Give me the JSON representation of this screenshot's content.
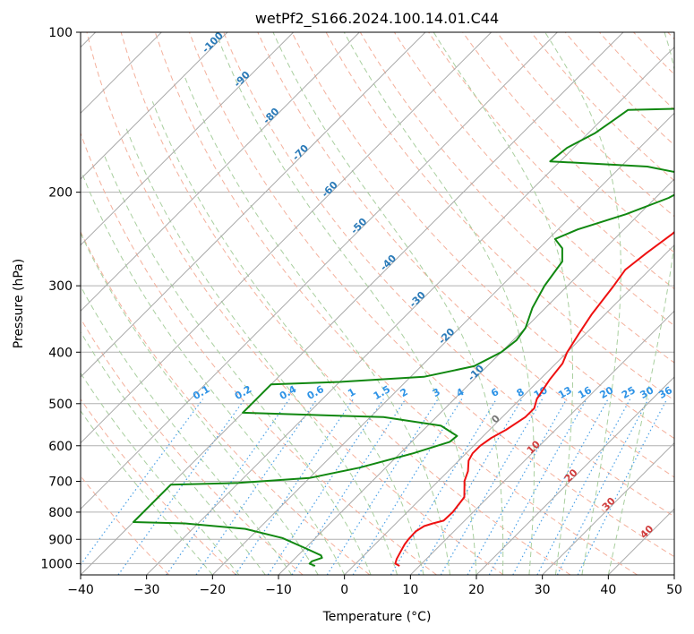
{
  "chart_data": {
    "type": "line",
    "title": "wetPf2_S166.2024.100.14.01.C44",
    "xlabel": "Temperature (°C)",
    "ylabel": "Pressure (hPa)",
    "xlim": [
      -40,
      50
    ],
    "ylim": [
      1050,
      100
    ],
    "y_scale": "log",
    "x_ticks": [
      -40,
      -30,
      -20,
      -10,
      0,
      10,
      20,
      30,
      40,
      50
    ],
    "y_ticks": [
      100,
      200,
      300,
      400,
      500,
      600,
      700,
      800,
      900,
      1000
    ],
    "grid": true,
    "series": [
      {
        "role": "temperature",
        "color": "#ee1111",
        "points": [
          [
            7.0,
            1010
          ],
          [
            6.0,
            1000
          ],
          [
            5.5,
            980
          ],
          [
            5.0,
            950
          ],
          [
            4.5,
            920
          ],
          [
            4.3,
            900
          ],
          [
            4.2,
            870
          ],
          [
            4.7,
            850
          ],
          [
            5.6,
            840
          ],
          [
            6.8,
            830
          ],
          [
            6.9,
            800
          ],
          [
            6.7,
            780
          ],
          [
            6.4,
            750
          ],
          [
            4.5,
            710
          ],
          [
            4.0,
            700
          ],
          [
            3.0,
            670
          ],
          [
            1.5,
            640
          ],
          [
            1.0,
            620
          ],
          [
            1.0,
            600
          ],
          [
            1.5,
            580
          ],
          [
            2.5,
            560
          ],
          [
            3.5,
            530
          ],
          [
            3.5,
            510
          ],
          [
            2.5,
            490
          ],
          [
            2.0,
            470
          ],
          [
            1.5,
            450
          ],
          [
            1.0,
            420
          ],
          [
            0.0,
            400
          ],
          [
            -1.0,
            370
          ],
          [
            -2.0,
            340
          ],
          [
            -3.0,
            300
          ],
          [
            -3.7,
            280
          ],
          [
            -3.0,
            260
          ],
          [
            -2.0,
            240
          ],
          [
            -1.6,
            220
          ],
          [
            -1.3,
            210
          ],
          [
            -0.3,
            200
          ],
          [
            2.0,
            190
          ],
          [
            6.0,
            180
          ],
          [
            9.5,
            170
          ],
          [
            12.5,
            160
          ],
          [
            14.5,
            150
          ],
          [
            16.0,
            140
          ],
          [
            16.5,
            130
          ],
          [
            18.0,
            120
          ],
          [
            20.0,
            110
          ],
          [
            22.0,
            105
          ],
          [
            28.5,
            100
          ]
        ]
      },
      {
        "role": "dewpoint",
        "color": "#118811",
        "points": [
          [
            -5.8,
            1010
          ],
          [
            -7.0,
            1000
          ],
          [
            -7.0,
            990
          ],
          [
            -6.0,
            975
          ],
          [
            -6.5,
            965
          ],
          [
            -10.0,
            935
          ],
          [
            -15.0,
            895
          ],
          [
            -22.0,
            860
          ],
          [
            -32.0,
            840
          ],
          [
            -40.0,
            835
          ],
          [
            -40.0,
            710
          ],
          [
            -30.0,
            705
          ],
          [
            -20.0,
            690
          ],
          [
            -14.0,
            660
          ],
          [
            -8.0,
            620
          ],
          [
            -4.2,
            590
          ],
          [
            -4.0,
            575
          ],
          [
            -8.0,
            550
          ],
          [
            -18.0,
            530
          ],
          [
            -40.0,
            520
          ],
          [
            -40.0,
            460
          ],
          [
            -30.0,
            455
          ],
          [
            -18.0,
            445
          ],
          [
            -12.0,
            425
          ],
          [
            -10.0,
            400
          ],
          [
            -9.5,
            380
          ],
          [
            -10.0,
            360
          ],
          [
            -12.0,
            330
          ],
          [
            -13.5,
            300
          ],
          [
            -14.5,
            270
          ],
          [
            -16.5,
            255
          ],
          [
            -19.0,
            245
          ],
          [
            -17.0,
            235
          ],
          [
            -12.0,
            220
          ],
          [
            -8.0,
            205
          ],
          [
            -6.5,
            195
          ],
          [
            -9.0,
            185
          ],
          [
            -16.0,
            179
          ],
          [
            -31.5,
            175
          ],
          [
            -31.0,
            165
          ],
          [
            -29.0,
            155
          ],
          [
            -28.0,
            145
          ],
          [
            -27.5,
            140
          ],
          [
            -17.0,
            139
          ],
          [
            -10.0,
            132
          ],
          [
            -6.5,
            125
          ],
          [
            -6.0,
            120
          ],
          [
            -5.5,
            115
          ],
          [
            -4.5,
            110
          ],
          [
            -3.5,
            105
          ],
          [
            -3.0,
            100
          ]
        ]
      }
    ],
    "reference_lines": {
      "dry_adiabats": {
        "color": "#f4b09c"
      },
      "moist_adiabats": {
        "color": "#a9cf9f"
      },
      "isotherms": {
        "color": "#aaaaaa"
      },
      "mixing_ratio_lines": {
        "color": "#4aa0e6"
      },
      "isotherm_labels": {
        "color": "#2a7ab8",
        "values": [
          "-100",
          "-90",
          "-80",
          "-70",
          "-60",
          "-50",
          "-40",
          "-30",
          "-20",
          "-10"
        ]
      },
      "mixing_ratio_labels": {
        "color": "#2e93e6",
        "values": [
          "0.1",
          "0.2",
          "0.4",
          "0.6",
          "1",
          "1.5",
          "2",
          "3",
          "4",
          "6",
          "8",
          "10",
          "13",
          "16",
          "20",
          "25",
          "30",
          "36"
        ]
      },
      "warm_isotherm_labels": {
        "color": "#d03c3c",
        "values": [
          "10",
          "20",
          "30",
          "40"
        ]
      },
      "zero_label": {
        "value": "0",
        "color": "#777777"
      }
    }
  }
}
